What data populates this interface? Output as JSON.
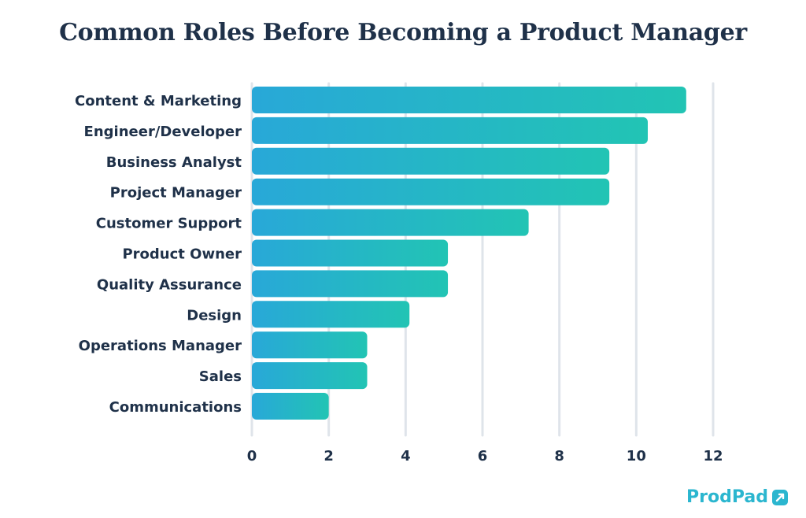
{
  "chart_data": {
    "type": "bar",
    "orientation": "horizontal",
    "title": "Common Roles Before Becoming a Product Manager",
    "categories": [
      "Content & Marketing",
      "Engineer/Developer",
      "Business Analyst",
      "Project Manager",
      "Customer Support",
      "Product Owner",
      "Quality Assurance",
      "Design",
      "Operations Manager",
      "Sales",
      "Communications"
    ],
    "values": [
      11.3,
      10.3,
      9.3,
      9.3,
      7.2,
      5.1,
      5.1,
      4.1,
      3.0,
      3.0,
      2.0
    ],
    "xlim": [
      0,
      12
    ],
    "xticks": [
      "0",
      "2",
      "4",
      "6",
      "8",
      "10",
      "12"
    ],
    "grid": true,
    "colors": {
      "bar_start": "#28a8d8",
      "bar_end": "#22c4b4",
      "grid": "#dfe4ea",
      "text": "#1f3149"
    }
  },
  "brand": {
    "name": "ProdPad",
    "icon": "prodpad-logo-icon",
    "color": "#2bb6cf"
  }
}
